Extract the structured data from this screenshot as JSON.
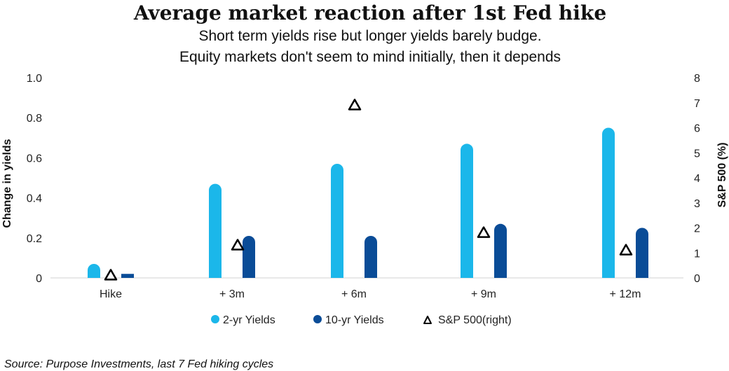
{
  "chart_data": {
    "type": "bar",
    "title": "Average market reaction after 1st Fed hike",
    "subtitle_lines": [
      "Short term yields rise but longer yields barely budge.",
      "Equity markets don't seem to mind initially, then it depends"
    ],
    "categories": [
      "Hike",
      "+ 3m",
      "+ 6m",
      "+ 9m",
      "+ 12m"
    ],
    "ylabel": "Change in yields",
    "y2label": "S&P 500 (%)",
    "ylim": [
      0,
      1.0
    ],
    "y_ticks": [
      "0",
      "0.2",
      "0.4",
      "0.6",
      "0.8",
      "1.0"
    ],
    "y2lim": [
      0,
      8
    ],
    "y2_ticks": [
      "0",
      "1",
      "2",
      "3",
      "4",
      "5",
      "6",
      "7",
      "8"
    ],
    "series": [
      {
        "name": "2-yr Yields",
        "type": "bar",
        "axis": "left",
        "color": "#1BB7EA",
        "values": [
          0.07,
          0.47,
          0.57,
          0.67,
          0.75
        ]
      },
      {
        "name": "10-yr Yields",
        "type": "bar",
        "axis": "left",
        "color": "#0A4C97",
        "values": [
          0.02,
          0.21,
          0.21,
          0.27,
          0.25
        ]
      },
      {
        "name": "S&P 500(right)",
        "type": "marker",
        "marker": "triangle-outline",
        "axis": "right",
        "color": "#000000",
        "values": [
          0.1,
          1.3,
          6.9,
          1.8,
          1.1
        ]
      }
    ],
    "legend_position": "bottom",
    "grid": false,
    "source": "Source: Purpose Investments, last 7 Fed hiking cycles"
  }
}
